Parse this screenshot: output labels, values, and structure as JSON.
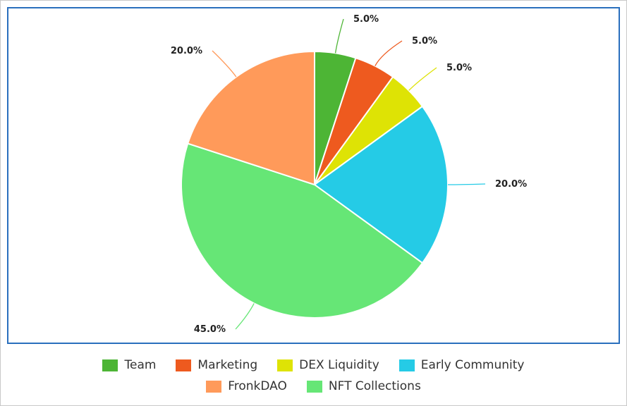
{
  "chart_data": {
    "type": "pie",
    "title": "",
    "categories": [
      "Team",
      "Marketing",
      "DEX Liquidity",
      "Early Community",
      "NFT Collections",
      "FronkDAO"
    ],
    "values": [
      5.0,
      5.0,
      5.0,
      20.0,
      45.0,
      20.0
    ],
    "labels": [
      "5.0%",
      "5.0%",
      "5.0%",
      "20.0%",
      "45.0%",
      "20.0%"
    ],
    "colors": [
      "#4db535",
      "#ee5a1f",
      "#dee305",
      "#25cbe6",
      "#66e676",
      "#ff9a5a"
    ],
    "start_angle_deg": 0,
    "direction": "clockwise",
    "legend_position": "bottom"
  },
  "legend": {
    "rows": [
      [
        {
          "label": "Team",
          "color": "#4db535"
        },
        {
          "label": "Marketing",
          "color": "#ee5a1f"
        },
        {
          "label": "DEX Liquidity",
          "color": "#dee305"
        },
        {
          "label": "Early Community",
          "color": "#25cbe6"
        }
      ],
      [
        {
          "label": "FronkDAO",
          "color": "#ff9a5a"
        },
        {
          "label": "NFT Collections",
          "color": "#66e676"
        }
      ]
    ]
  }
}
